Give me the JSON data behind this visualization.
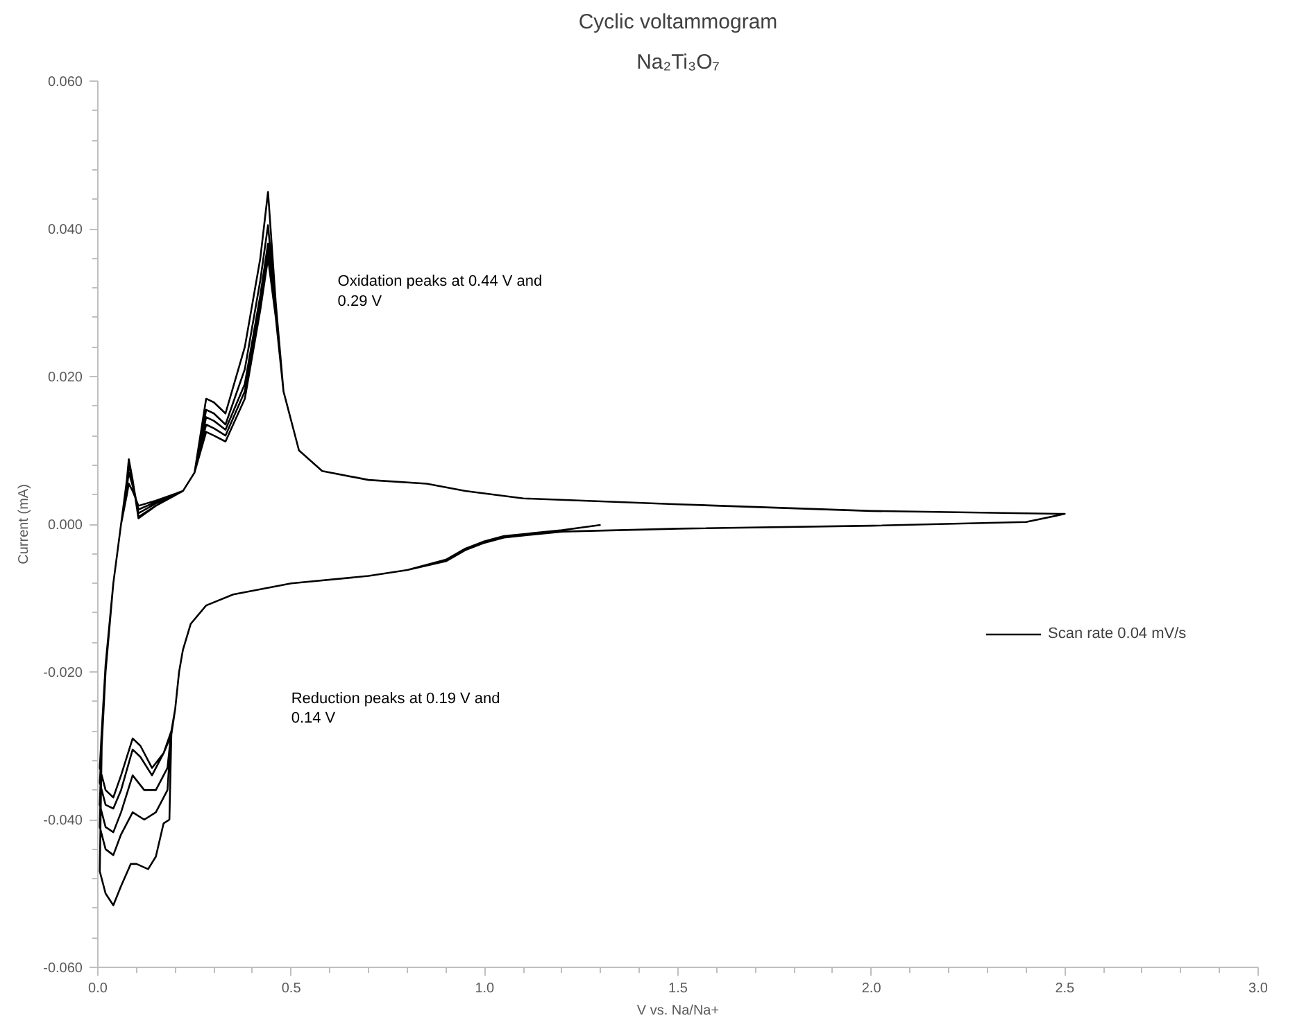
{
  "chart_data": {
    "type": "line",
    "title": "Cyclic voltammogram",
    "subtitle": "Na₂Ti₃O₇",
    "xlabel": "V vs. Na/Na+",
    "ylabel": "Current (mA)",
    "xlim": [
      0,
      3.0
    ],
    "xticks": [
      {
        "value": 0,
        "label": "0.0"
      },
      {
        "value": 0.5,
        "label": "0.5"
      },
      {
        "value": 1.0,
        "label": "1.0"
      },
      {
        "value": 1.5,
        "label": "1.5"
      },
      {
        "value": 2.0,
        "label": "2.0"
      },
      {
        "value": 2.5,
        "label": "2.5"
      },
      {
        "value": 3.0,
        "label": "3.0"
      }
    ],
    "ylim": [
      -0.06,
      0.06
    ],
    "yticks": [
      {
        "value": -0.06,
        "label": "-0.060"
      },
      {
        "value": -0.04,
        "label": "-0.040"
      },
      {
        "value": -0.02,
        "label": "-0.020"
      },
      {
        "value": 0,
        "label": "0.000"
      },
      {
        "value": 0.02,
        "label": "0.020"
      },
      {
        "value": 0.04,
        "label": "0.040"
      },
      {
        "value": 0.06,
        "label": "0.060"
      }
    ],
    "grid": false,
    "legend": "right",
    "marker": "none",
    "line_style": "solid",
    "annotations": [
      "Oxidation peaks at 0.44 V and\n0.29 V",
      "Reduction peaks at 0.19 V and\n0.14 V"
    ],
    "series": [
      {
        "name": "Scan rate 0.04 mV/s",
        "color": "#000000",
        "x": [
          1.3,
          1.2,
          1.05,
          1.0,
          0.95,
          0.9,
          0.8,
          0.7,
          0.5,
          0.35,
          0.28,
          0.24,
          0.22,
          0.21,
          0.2,
          0.19,
          0.185,
          0.17,
          0.15,
          0.13,
          0.1,
          0.085,
          0.06,
          0.04,
          0.02,
          0.005,
          0.01,
          0.02,
          0.04,
          0.06,
          0.075,
          0.08,
          0.09,
          0.105,
          0.15,
          0.22,
          0.25,
          0.28,
          0.3,
          0.33,
          0.38,
          0.42,
          0.44,
          0.46,
          0.48,
          0.52,
          0.58,
          0.7,
          0.85,
          0.95,
          1.1,
          1.5,
          2.0,
          2.5,
          2.4,
          2.0,
          1.5,
          1.2,
          1.05,
          1.0,
          0.95,
          0.9,
          0.8,
          0.7,
          0.5,
          0.35,
          0.28,
          0.24,
          0.22,
          0.21,
          0.2,
          0.19,
          0.18,
          0.15,
          0.12,
          0.09,
          0.06,
          0.04,
          0.02,
          0.005,
          0.01,
          0.02,
          0.04,
          0.06,
          0.075,
          0.08,
          0.09,
          0.105,
          0.15,
          0.22,
          0.25,
          0.28,
          0.3,
          0.33,
          0.38,
          0.42,
          0.44,
          0.46,
          0.48,
          0.52,
          0.58,
          0.7,
          0.85,
          0.95,
          1.1,
          1.5,
          2.0,
          2.5,
          2.4,
          2.0,
          1.5,
          1.2,
          1.05,
          1.0,
          0.95,
          0.9,
          0.8,
          0.7,
          0.5,
          0.35,
          0.28,
          0.24,
          0.22,
          0.21,
          0.2,
          0.19,
          0.18,
          0.15,
          0.12,
          0.09,
          0.06,
          0.04,
          0.02,
          0.005,
          0.01,
          0.02,
          0.04,
          0.06,
          0.075,
          0.08,
          0.09,
          0.105,
          0.15,
          0.22,
          0.25,
          0.28,
          0.3,
          0.33,
          0.38,
          0.42,
          0.44,
          0.46,
          0.48,
          0.52,
          0.58,
          0.7,
          0.85,
          0.95,
          1.1,
          1.5,
          2.0,
          2.5,
          2.4,
          2.0,
          1.5,
          1.2,
          1.05,
          1.0,
          0.95,
          0.9,
          0.8,
          0.7,
          0.5,
          0.35,
          0.28,
          0.24,
          0.22,
          0.21,
          0.2,
          0.19,
          0.17,
          0.14,
          0.11,
          0.09,
          0.06,
          0.04,
          0.02,
          0.005,
          0.01,
          0.02,
          0.04,
          0.06,
          0.075,
          0.08,
          0.09,
          0.105,
          0.15,
          0.22,
          0.25,
          0.28,
          0.3,
          0.33,
          0.38,
          0.42,
          0.44,
          0.46,
          0.48,
          0.52,
          0.58,
          0.7,
          0.85,
          0.95,
          1.1,
          1.5,
          2.0,
          2.5,
          2.4,
          2.0,
          1.5,
          1.2,
          1.05,
          1.0,
          0.95,
          0.9,
          0.8,
          0.7,
          0.5,
          0.35,
          0.28,
          0.24,
          0.22,
          0.21,
          0.2,
          0.19,
          0.17,
          0.14,
          0.11,
          0.09,
          0.06,
          0.04,
          0.02,
          0.005,
          0.01,
          0.02,
          0.04,
          0.06,
          0.075,
          0.08,
          0.09,
          0.105,
          0.15,
          0.22,
          0.25,
          0.28,
          0.3,
          0.33,
          0.38,
          0.42,
          0.44,
          0.46,
          0.48,
          0.52,
          0.58,
          0.7,
          0.85,
          0.95,
          1.1,
          1.5,
          2.0,
          2.5
        ],
        "values": [
          -0.0001,
          -0.0008,
          -0.0016,
          -0.0023,
          -0.0033,
          -0.0048,
          -0.0062,
          -0.007,
          -0.008,
          -0.0095,
          -0.011,
          -0.0135,
          -0.017,
          -0.02,
          -0.025,
          -0.0285,
          -0.04,
          -0.0405,
          -0.045,
          -0.0467,
          -0.046,
          -0.046,
          -0.049,
          -0.0516,
          -0.05,
          -0.047,
          -0.03,
          -0.02,
          -0.008,
          0.0,
          0.006,
          0.0088,
          0.006,
          0.0008,
          0.0025,
          0.0045,
          0.007,
          0.017,
          0.0165,
          0.015,
          0.024,
          0.036,
          0.045,
          0.03,
          0.018,
          0.01,
          0.0072,
          0.006,
          0.0055,
          0.0045,
          0.0035,
          0.0027,
          0.0018,
          0.0014,
          0.0003,
          -0.0002,
          -0.0006,
          -0.001,
          -0.0018,
          -0.0025,
          -0.0035,
          -0.005,
          -0.0062,
          -0.007,
          -0.008,
          -0.0095,
          -0.011,
          -0.0135,
          -0.017,
          -0.02,
          -0.025,
          -0.028,
          -0.036,
          -0.039,
          -0.04,
          -0.039,
          -0.042,
          -0.0448,
          -0.044,
          -0.041,
          -0.03,
          -0.02,
          -0.008,
          0.0,
          0.006,
          0.0085,
          0.006,
          0.001,
          0.0025,
          0.0045,
          0.007,
          0.0155,
          0.015,
          0.0135,
          0.021,
          0.033,
          0.0405,
          0.029,
          0.018,
          0.01,
          0.0072,
          0.006,
          0.0055,
          0.0045,
          0.0035,
          0.0027,
          0.0018,
          0.0014,
          0.0003,
          -0.0002,
          -0.0006,
          -0.001,
          -0.0018,
          -0.0025,
          -0.0035,
          -0.005,
          -0.0062,
          -0.007,
          -0.008,
          -0.0095,
          -0.011,
          -0.0135,
          -0.017,
          -0.02,
          -0.025,
          -0.028,
          -0.033,
          -0.036,
          -0.036,
          -0.034,
          -0.039,
          -0.0417,
          -0.041,
          -0.038,
          -0.03,
          -0.02,
          -0.008,
          0.0,
          0.0055,
          0.008,
          0.0058,
          0.0015,
          0.0028,
          0.0045,
          0.007,
          0.0145,
          0.014,
          0.0128,
          0.019,
          0.031,
          0.038,
          0.029,
          0.018,
          0.01,
          0.0072,
          0.006,
          0.0055,
          0.0045,
          0.0035,
          0.0027,
          0.0018,
          0.0014,
          0.0003,
          -0.0002,
          -0.0006,
          -0.001,
          -0.0018,
          -0.0025,
          -0.0035,
          -0.005,
          -0.0062,
          -0.007,
          -0.008,
          -0.0095,
          -0.011,
          -0.0135,
          -0.017,
          -0.02,
          -0.025,
          -0.0285,
          -0.031,
          -0.034,
          -0.0315,
          -0.0305,
          -0.036,
          -0.0385,
          -0.038,
          -0.035,
          -0.03,
          -0.02,
          -0.008,
          0.0,
          0.005,
          0.007,
          0.0052,
          0.002,
          0.003,
          0.0045,
          0.007,
          0.0135,
          0.013,
          0.012,
          0.018,
          0.03,
          0.037,
          0.028,
          0.018,
          0.01,
          0.0072,
          0.006,
          0.0055,
          0.0045,
          0.0035,
          0.0027,
          0.0018,
          0.0014,
          0.0003,
          -0.0002,
          -0.0006,
          -0.001,
          -0.0018,
          -0.0025,
          -0.0035,
          -0.005,
          -0.0062,
          -0.007,
          -0.008,
          -0.0095,
          -0.011,
          -0.0135,
          -0.017,
          -0.02,
          -0.025,
          -0.028,
          -0.031,
          -0.033,
          -0.03,
          -0.029,
          -0.034,
          -0.037,
          -0.036,
          -0.033,
          -0.028,
          -0.019,
          -0.008,
          0.0,
          0.004,
          0.0055,
          0.0045,
          0.0025,
          0.0032,
          0.0045,
          0.007,
          0.0125,
          0.012,
          0.0112,
          0.017,
          0.029,
          0.036,
          0.028,
          0.018,
          0.01,
          0.0072,
          0.006,
          0.0055,
          0.0045,
          0.0035,
          0.0027,
          0.0018,
          0.0014
        ]
      }
    ]
  }
}
